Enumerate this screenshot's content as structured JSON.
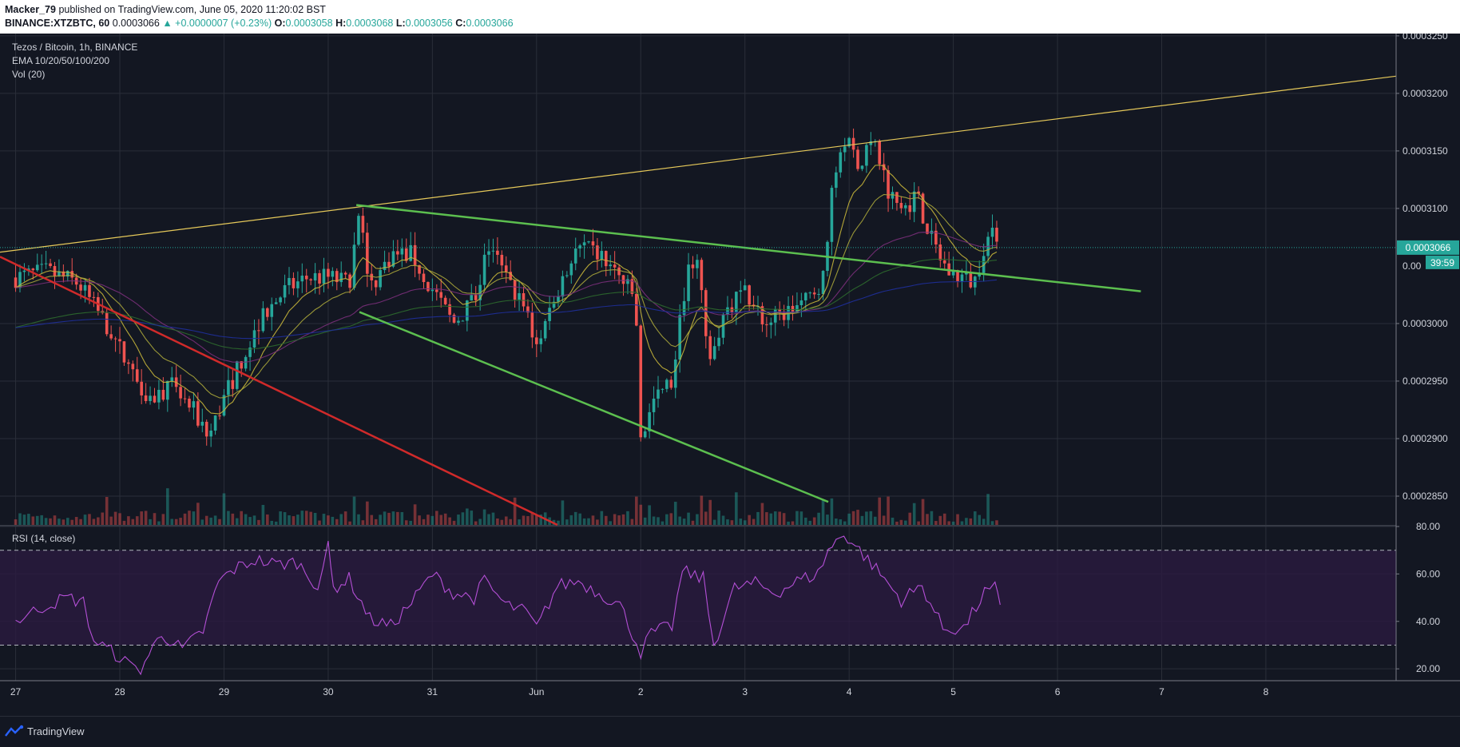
{
  "header": {
    "author": "Macker_79",
    "published_text": "published on TradingView.com, June 05, 2020 11:20:02 BST",
    "symbol": "BINANCE:XTZBTC, 60",
    "last": "0.0003066",
    "change": "▲ +0.0000007 (+0.23%)",
    "o_label": "O:",
    "o_value": "0.0003058",
    "h_label": "H:",
    "h_value": "0.0003068",
    "l_label": "L:",
    "l_value": "0.0003056",
    "c_label": "C:",
    "c_value": "0.0003066"
  },
  "legend": {
    "title": "Tezos / Bitcoin, 1h, BINANCE",
    "ema": "EMA 10/20/50/100/200",
    "vol": "Vol (20)",
    "rsi": "RSI (14, close)"
  },
  "price_badge": "0.0003066",
  "countdown_badge": "39:59",
  "footer": {
    "brand": "TradingView"
  },
  "colors": {
    "background": "#131722",
    "grid": "#2a2e39",
    "up": "#26a69a",
    "down": "#ef5350",
    "trend_yellow": "#e6c95a",
    "trend_green": "#5cbf4f",
    "trend_red": "#d02a2a",
    "rsi_line": "#b44fd6",
    "rsi_band": "#2a1a40"
  },
  "chart_data": [
    {
      "type": "candlestick",
      "title": "Tezos / Bitcoin, 1h, BINANCE",
      "x_ticks": [
        "27",
        "28",
        "29",
        "30",
        "31",
        "Jun",
        "2",
        "3",
        "4",
        "5",
        "6",
        "7",
        "8"
      ],
      "y_ticks": [
        "0.0003250",
        "0.0003200",
        "0.0003150",
        "0.0003100",
        "0.0003000",
        "0.0002950",
        "0.0002900",
        "0.0002850"
      ],
      "y_tick_values": [
        0.000325,
        0.00032,
        0.000315,
        0.00031,
        0.0003,
        0.000295,
        0.00029,
        0.000285
      ],
      "ylim": [
        0.0002825,
        0.0003252
      ],
      "xlim_days": [
        -0.15,
        13.25
      ],
      "approx_close_path": [
        [
          0,
          0.000304
        ],
        [
          0.3,
          0.0003045
        ],
        [
          0.6,
          0.0003035
        ],
        [
          0.9,
          0.0002995
        ],
        [
          1.1,
          0.000296
        ],
        [
          1.3,
          0.0002935
        ],
        [
          1.5,
          0.0002945
        ],
        [
          1.7,
          0.0002925
        ],
        [
          1.85,
          0.00029
        ],
        [
          2.0,
          0.0002935
        ],
        [
          2.2,
          0.0002975
        ],
        [
          2.4,
          0.000301
        ],
        [
          2.6,
          0.000303
        ],
        [
          2.8,
          0.000304
        ],
        [
          3.0,
          0.000304
        ],
        [
          3.2,
          0.0003035
        ],
        [
          3.3,
          0.0003095
        ],
        [
          3.4,
          0.000303
        ],
        [
          3.6,
          0.000306
        ],
        [
          3.8,
          0.000306
        ],
        [
          4.0,
          0.000303
        ],
        [
          4.2,
          0.0003
        ],
        [
          4.4,
          0.000302
        ],
        [
          4.55,
          0.000307
        ],
        [
          4.7,
          0.000304
        ],
        [
          4.9,
          0.000301
        ],
        [
          5.0,
          0.000298
        ],
        [
          5.2,
          0.000303
        ],
        [
          5.4,
          0.0003065
        ],
        [
          5.6,
          0.000306
        ],
        [
          5.8,
          0.000304
        ],
        [
          5.95,
          0.000302
        ],
        [
          6.0,
          0.0002895
        ],
        [
          6.1,
          0.000293
        ],
        [
          6.3,
          0.000295
        ],
        [
          6.45,
          0.000305
        ],
        [
          6.55,
          0.000306
        ],
        [
          6.65,
          0.000296
        ],
        [
          6.8,
          0.000301
        ],
        [
          7.0,
          0.000303
        ],
        [
          7.2,
          0.0003
        ],
        [
          7.4,
          0.000301
        ],
        [
          7.6,
          0.000302
        ],
        [
          7.75,
          0.000304
        ],
        [
          7.85,
          0.000313
        ],
        [
          7.95,
          0.000316
        ],
        [
          8.1,
          0.000314
        ],
        [
          8.25,
          0.0003155
        ],
        [
          8.4,
          0.000311
        ],
        [
          8.5,
          0.00031
        ],
        [
          8.65,
          0.000311
        ],
        [
          8.8,
          0.000307
        ],
        [
          8.95,
          0.0003045
        ],
        [
          9.1,
          0.000304
        ],
        [
          9.2,
          0.0003035
        ],
        [
          9.3,
          0.000307
        ],
        [
          9.4,
          0.000308
        ],
        [
          9.45,
          0.0003066
        ]
      ],
      "last_price": 0.0003066
    },
    {
      "type": "line",
      "title": "RSI (14, close)",
      "y_ticks": [
        "80.00",
        "60.00",
        "40.00",
        "20.00"
      ],
      "y_tick_values": [
        80,
        60,
        40,
        20
      ],
      "ylim": [
        15,
        80
      ],
      "bands": [
        30,
        70
      ],
      "series": [
        {
          "x": [
            0,
            0.3,
            0.5,
            0.65,
            0.75,
            1.0,
            1.1,
            1.2,
            1.4,
            1.6,
            1.8,
            1.95,
            2.1,
            2.3,
            2.5,
            2.7,
            2.9,
            3.0,
            3.05,
            3.2,
            3.4,
            3.6,
            3.8,
            4.0,
            4.2,
            4.4,
            4.5,
            4.7,
            4.9,
            5.0,
            5.2,
            5.4,
            5.6,
            5.8,
            6.0,
            6.1,
            6.3,
            6.4,
            6.6,
            6.7,
            6.9,
            7.1,
            7.3,
            7.5,
            7.7,
            7.8,
            7.95,
            8.1,
            8.3,
            8.5,
            8.7,
            8.9,
            9.1,
            9.3,
            9.4,
            9.45
          ],
          "values": [
            40,
            47,
            50,
            48,
            32,
            25,
            21,
            20,
            35,
            28,
            36,
            57,
            62,
            66,
            64,
            65,
            55,
            71,
            54,
            58,
            41,
            38,
            48,
            60,
            52,
            50,
            57,
            47,
            44,
            37,
            55,
            57,
            52,
            47,
            27,
            35,
            38,
            61,
            58,
            30,
            54,
            56,
            52,
            57,
            60,
            70,
            77,
            70,
            60,
            49,
            55,
            37,
            37,
            52,
            54,
            47
          ]
        }
      ]
    }
  ]
}
